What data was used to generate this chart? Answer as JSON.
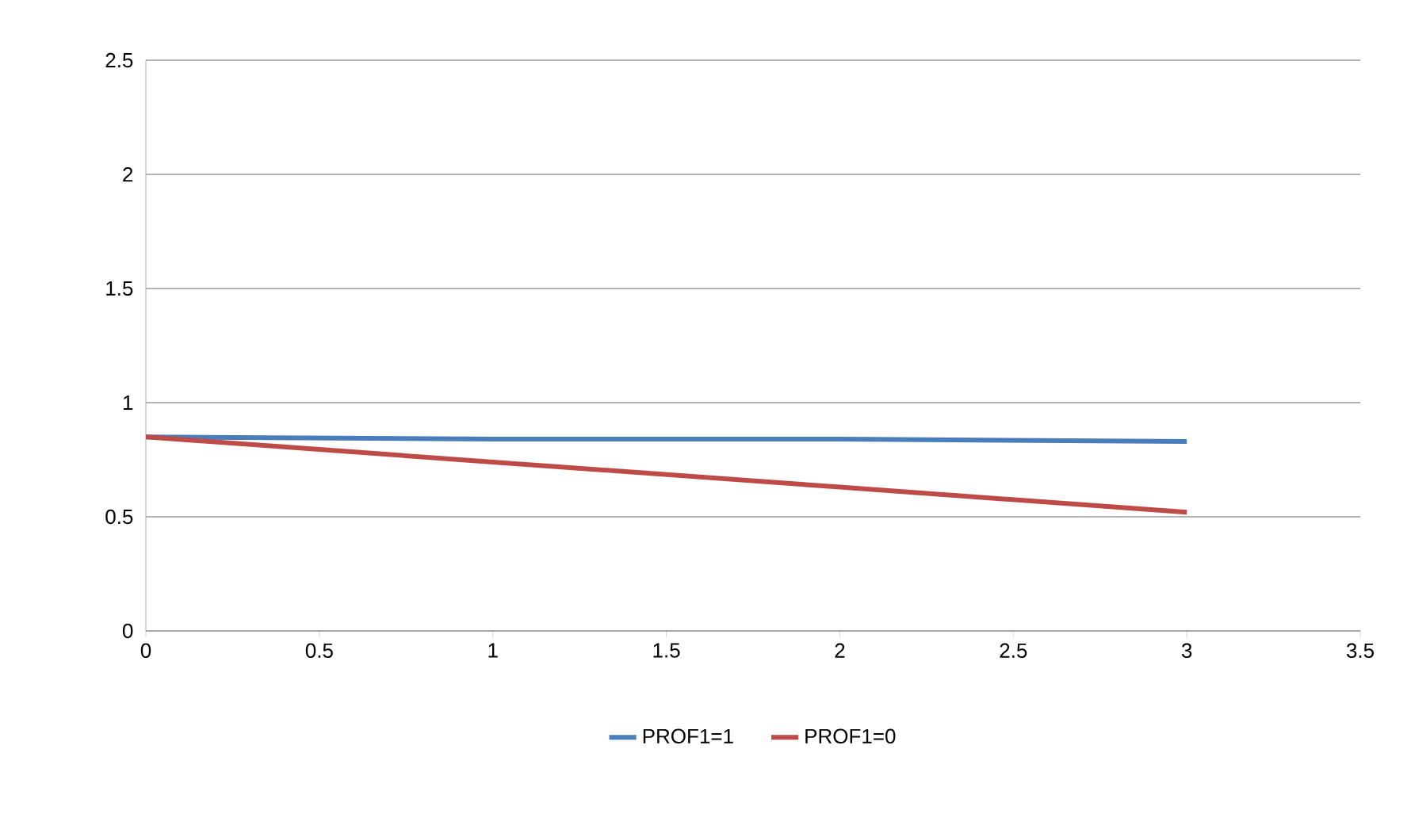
{
  "chart_data": {
    "type": "line",
    "x": [
      0,
      1,
      2,
      3
    ],
    "series": [
      {
        "name": "PROF1=1",
        "color": "#4a7ebb",
        "values": [
          0.85,
          0.84,
          0.84,
          0.83
        ]
      },
      {
        "name": "PROF1=0",
        "color": "#be4b48",
        "values": [
          0.85,
          0.74,
          0.63,
          0.52
        ]
      }
    ],
    "xlim": [
      0,
      3.5
    ],
    "xticks": [
      0,
      0.5,
      1,
      1.5,
      2,
      2.5,
      3,
      3.5
    ],
    "ylim": [
      0,
      2.5
    ],
    "yticks": [
      0,
      0.5,
      1,
      1.5,
      2,
      2.5
    ],
    "grid": "y",
    "legend": "bottom",
    "marker": "none",
    "line_style": "solid"
  }
}
